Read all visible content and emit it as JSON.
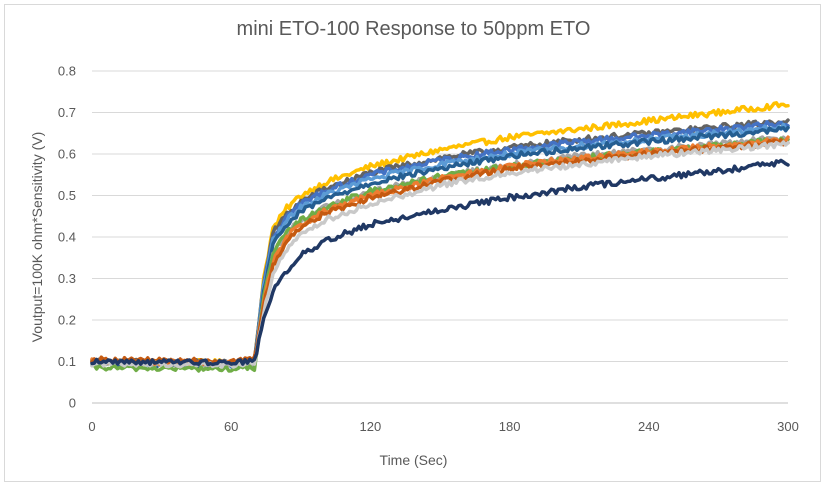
{
  "chart_data": {
    "type": "line",
    "title": "mini ETO-100 Response to 50ppm ETO",
    "xlabel": "Time (Sec)",
    "ylabel": "Voutput=100K ohm*Sensitivity (V)",
    "xlim": [
      0,
      300
    ],
    "ylim": [
      0,
      0.8
    ],
    "xticks": [
      "0",
      "60",
      "120",
      "180",
      "240",
      "300"
    ],
    "yticks": [
      "0",
      "0.1",
      "0.2",
      "0.3",
      "0.4",
      "0.5",
      "0.6",
      "0.7",
      "0.8"
    ],
    "grid": "horizontal",
    "legend": "none",
    "series": [
      {
        "color": "#ffc000",
        "baseline": 0.1,
        "x": [
          0,
          60,
          70,
          74,
          78,
          84,
          90,
          100,
          120,
          150,
          180,
          210,
          240,
          270,
          300
        ],
        "y": [
          0.1,
          0.098,
          0.1,
          0.3,
          0.42,
          0.47,
          0.5,
          0.53,
          0.57,
          0.61,
          0.64,
          0.66,
          0.68,
          0.7,
          0.72
        ]
      },
      {
        "color": "#636363",
        "baseline": 0.1,
        "x": [
          0,
          60,
          70,
          74,
          78,
          84,
          90,
          100,
          120,
          150,
          180,
          210,
          240,
          270,
          300
        ],
        "y": [
          0.1,
          0.098,
          0.1,
          0.29,
          0.41,
          0.455,
          0.485,
          0.515,
          0.555,
          0.59,
          0.615,
          0.635,
          0.65,
          0.665,
          0.68
        ]
      },
      {
        "color": "#4472c4",
        "baseline": 0.095,
        "x": [
          0,
          60,
          70,
          74,
          78,
          84,
          90,
          100,
          120,
          150,
          180,
          210,
          240,
          270,
          300
        ],
        "y": [
          0.095,
          0.092,
          0.095,
          0.29,
          0.4,
          0.45,
          0.48,
          0.51,
          0.55,
          0.585,
          0.61,
          0.63,
          0.645,
          0.66,
          0.675
        ]
      },
      {
        "color": "#5b9bd5",
        "baseline": 0.097,
        "x": [
          0,
          60,
          70,
          74,
          78,
          84,
          90,
          100,
          120,
          150,
          180,
          210,
          240,
          270,
          300
        ],
        "y": [
          0.097,
          0.094,
          0.097,
          0.28,
          0.39,
          0.44,
          0.47,
          0.5,
          0.54,
          0.575,
          0.6,
          0.62,
          0.635,
          0.65,
          0.665
        ]
      },
      {
        "color": "#255e91",
        "baseline": 0.095,
        "x": [
          0,
          60,
          70,
          74,
          78,
          84,
          90,
          100,
          120,
          150,
          180,
          210,
          240,
          270,
          300
        ],
        "y": [
          0.095,
          0.092,
          0.095,
          0.27,
          0.38,
          0.43,
          0.46,
          0.49,
          0.53,
          0.565,
          0.595,
          0.615,
          0.63,
          0.645,
          0.66
        ]
      },
      {
        "color": "#a5a5a5",
        "baseline": 0.095,
        "x": [
          0,
          60,
          70,
          74,
          78,
          84,
          90,
          100,
          120,
          150,
          180,
          210,
          240,
          270,
          300
        ],
        "y": [
          0.095,
          0.092,
          0.095,
          0.25,
          0.36,
          0.41,
          0.44,
          0.47,
          0.51,
          0.545,
          0.575,
          0.595,
          0.61,
          0.625,
          0.64
        ]
      },
      {
        "color": "#70ad47",
        "baseline": 0.085,
        "x": [
          0,
          60,
          70,
          74,
          78,
          84,
          90,
          100,
          120,
          150,
          180,
          210,
          240,
          270,
          300
        ],
        "y": [
          0.085,
          0.082,
          0.085,
          0.25,
          0.36,
          0.41,
          0.44,
          0.47,
          0.51,
          0.545,
          0.57,
          0.59,
          0.605,
          0.62,
          0.635
        ]
      },
      {
        "color": "#ed7d31",
        "baseline": 0.1,
        "x": [
          0,
          60,
          70,
          74,
          78,
          84,
          90,
          100,
          120,
          150,
          180,
          210,
          240,
          270,
          300
        ],
        "y": [
          0.1,
          0.098,
          0.1,
          0.24,
          0.34,
          0.4,
          0.43,
          0.46,
          0.5,
          0.54,
          0.57,
          0.59,
          0.605,
          0.62,
          0.635
        ]
      },
      {
        "color": "#c55a11",
        "baseline": 0.105,
        "x": [
          0,
          60,
          70,
          74,
          78,
          84,
          90,
          100,
          120,
          150,
          180,
          210,
          240,
          270,
          300
        ],
        "y": [
          0.105,
          0.1,
          0.105,
          0.235,
          0.33,
          0.39,
          0.425,
          0.455,
          0.495,
          0.535,
          0.565,
          0.585,
          0.6,
          0.615,
          0.63
        ]
      },
      {
        "color": "#c9c9c9",
        "baseline": 0.095,
        "x": [
          0,
          60,
          70,
          74,
          78,
          84,
          90,
          100,
          120,
          150,
          180,
          210,
          240,
          270,
          300
        ],
        "y": [
          0.095,
          0.092,
          0.095,
          0.22,
          0.31,
          0.37,
          0.405,
          0.44,
          0.48,
          0.525,
          0.555,
          0.575,
          0.595,
          0.61,
          0.625
        ]
      },
      {
        "color": "#203864",
        "baseline": 0.1,
        "x": [
          0,
          60,
          70,
          74,
          78,
          84,
          90,
          100,
          120,
          150,
          180,
          210,
          240,
          270,
          300
        ],
        "y": [
          0.1,
          0.098,
          0.1,
          0.2,
          0.27,
          0.32,
          0.355,
          0.39,
          0.43,
          0.465,
          0.495,
          0.52,
          0.54,
          0.56,
          0.58
        ]
      }
    ]
  }
}
